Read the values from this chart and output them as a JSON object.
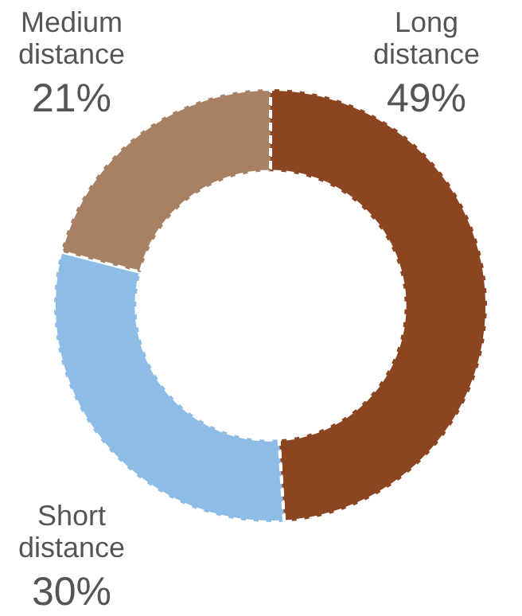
{
  "chart_data": {
    "type": "donut",
    "categories": [
      "Long distance",
      "Short distance",
      "Medium distance"
    ],
    "values": [
      49,
      30,
      21
    ],
    "value_labels": [
      "49%",
      "30%",
      "21%"
    ],
    "colors": [
      "#8b4520",
      "#8dbce6",
      "#a88064"
    ]
  }
}
